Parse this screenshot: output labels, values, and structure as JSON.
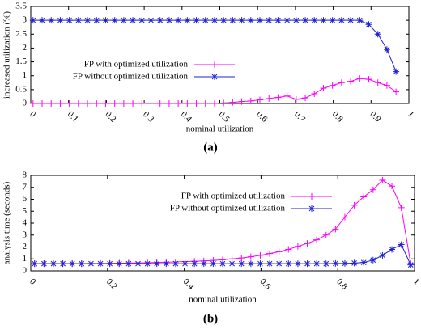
{
  "chart_data": [
    {
      "type": "line",
      "caption": "(a)",
      "xlabel": "nominal utilization",
      "ylabel": "increased utilization (%)",
      "xlim": [
        0,
        1
      ],
      "xticks": [
        0,
        0.1,
        0.2,
        0.3,
        0.4,
        0.5,
        0.6,
        0.7,
        0.8,
        0.9,
        1
      ],
      "ylim": [
        0,
        3.5
      ],
      "yticks": [
        0,
        0.5,
        1,
        1.5,
        2,
        2.5,
        3,
        3.5
      ],
      "legend": "center",
      "x": [
        0.006,
        0.03,
        0.054,
        0.078,
        0.102,
        0.126,
        0.15,
        0.174,
        0.198,
        0.222,
        0.246,
        0.27,
        0.294,
        0.318,
        0.342,
        0.366,
        0.39,
        0.414,
        0.438,
        0.462,
        0.486,
        0.51,
        0.534,
        0.558,
        0.582,
        0.606,
        0.63,
        0.654,
        0.678,
        0.702,
        0.726,
        0.75,
        0.774,
        0.798,
        0.822,
        0.846,
        0.87,
        0.894,
        0.918,
        0.942,
        0.966
      ],
      "series": [
        {
          "name": "FP with optimized utilization",
          "color": "#ff00ff",
          "marker": "plus",
          "values": [
            0,
            0,
            0,
            0,
            0,
            0,
            0,
            0,
            0,
            0,
            0,
            0,
            0,
            0,
            0,
            0,
            0,
            0,
            0,
            0,
            0,
            0.02,
            0.04,
            0.07,
            0.09,
            0.13,
            0.18,
            0.22,
            0.27,
            0.15,
            0.2,
            0.35,
            0.55,
            0.65,
            0.75,
            0.8,
            0.9,
            0.87,
            0.75,
            0.65,
            0.42
          ]
        },
        {
          "name": "FP without optimized utilization",
          "color": "#2020d0",
          "marker": "star",
          "values": [
            3,
            3,
            3,
            3,
            3,
            3,
            3,
            3,
            3,
            3,
            3,
            3,
            3,
            3,
            3,
            3,
            3,
            3,
            3,
            3,
            3,
            3,
            3,
            3,
            3,
            3,
            3,
            3,
            3,
            3,
            3,
            3,
            3,
            3,
            3,
            3,
            3,
            2.85,
            2.5,
            1.95,
            1.15
          ]
        }
      ]
    },
    {
      "type": "line",
      "caption": "(b)",
      "xlabel": "nominal utilization",
      "ylabel": "analysis time (seconds)",
      "xlim": [
        0,
        1
      ],
      "xticks": [
        0,
        0.2,
        0.4,
        0.6,
        0.8,
        1
      ],
      "ylim": [
        0,
        8
      ],
      "yticks": [
        0,
        1,
        2,
        3,
        4,
        5,
        6,
        7,
        8
      ],
      "legend": "upper center",
      "x": [
        0.01,
        0.0345,
        0.059,
        0.0835,
        0.108,
        0.1325,
        0.157,
        0.1815,
        0.206,
        0.2305,
        0.255,
        0.2795,
        0.304,
        0.3285,
        0.353,
        0.3775,
        0.402,
        0.4265,
        0.451,
        0.4755,
        0.5,
        0.5245,
        0.549,
        0.5735,
        0.598,
        0.6225,
        0.647,
        0.6715,
        0.696,
        0.7205,
        0.745,
        0.7695,
        0.794,
        0.8185,
        0.843,
        0.8675,
        0.892,
        0.9165,
        0.941,
        0.9655,
        0.99
      ],
      "series": [
        {
          "name": "FP with optimized utilization",
          "color": "#ff00ff",
          "marker": "plus",
          "values": [
            0.6,
            0.6,
            0.6,
            0.6,
            0.6,
            0.6,
            0.62,
            0.62,
            0.63,
            0.64,
            0.65,
            0.66,
            0.68,
            0.7,
            0.72,
            0.75,
            0.78,
            0.8,
            0.83,
            0.87,
            0.92,
            1.0,
            1.08,
            1.18,
            1.3,
            1.45,
            1.6,
            1.8,
            2.05,
            2.3,
            2.6,
            3.0,
            3.5,
            4.5,
            5.5,
            6.2,
            6.8,
            7.6,
            7.1,
            5.3,
            0.6
          ]
        },
        {
          "name": "FP without optimized utilization",
          "color": "#2020d0",
          "marker": "star",
          "values": [
            0.6,
            0.6,
            0.6,
            0.6,
            0.6,
            0.6,
            0.6,
            0.6,
            0.6,
            0.6,
            0.6,
            0.6,
            0.6,
            0.6,
            0.6,
            0.6,
            0.6,
            0.6,
            0.6,
            0.6,
            0.6,
            0.6,
            0.6,
            0.6,
            0.6,
            0.6,
            0.6,
            0.6,
            0.6,
            0.6,
            0.6,
            0.6,
            0.62,
            0.62,
            0.65,
            0.7,
            0.9,
            1.3,
            1.8,
            2.2,
            0.5
          ]
        }
      ]
    }
  ]
}
